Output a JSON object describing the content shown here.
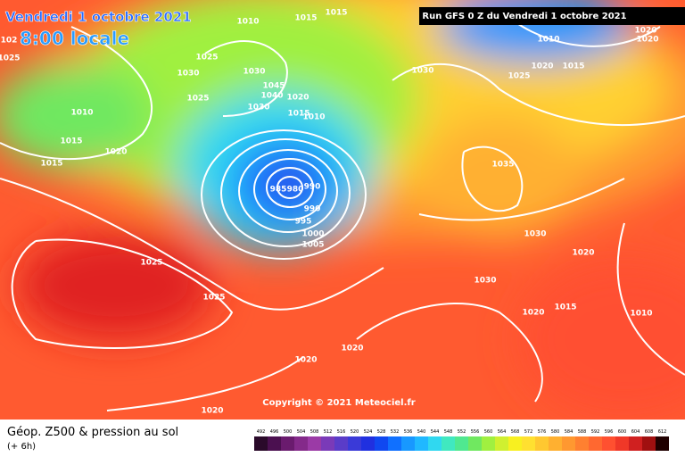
{
  "header": {
    "title": "Vendredi 1 octobre 2021",
    "time": "8:00 locale",
    "run": "Run GFS 0 Z du Vendredi 1 octobre 2021",
    "copyright": "Copyright © 2021 Meteociel.fr"
  },
  "footer": {
    "title": "Géop. Z500 & pression au sol",
    "subtitle": "(+ 6h)"
  },
  "legend": {
    "ticks": [
      492,
      496,
      500,
      504,
      508,
      512,
      516,
      520,
      524,
      528,
      532,
      536,
      540,
      544,
      548,
      552,
      556,
      560,
      564,
      568,
      572,
      576,
      580,
      584,
      588,
      592,
      596,
      600,
      604,
      608,
      612
    ],
    "colors": [
      "#2a0a2a",
      "#4b1050",
      "#6a1b6e",
      "#842a8a",
      "#9b3aa6",
      "#7a3ab8",
      "#5a3cc8",
      "#3a3ad8",
      "#2030e0",
      "#1048f0",
      "#1070ff",
      "#1898ff",
      "#20b8ff",
      "#30d8f0",
      "#40e8c0",
      "#50e890",
      "#70e860",
      "#a0f040",
      "#d0f030",
      "#f8f020",
      "#ffe030",
      "#ffc830",
      "#ffb030",
      "#ff9830",
      "#ff8030",
      "#ff6830",
      "#ff5030",
      "#f03828",
      "#d02020",
      "#a01010",
      "#200000"
    ]
  },
  "isobar_labels": [
    "1025",
    "1025",
    "1020",
    "1020",
    "1020",
    "1015",
    "1015",
    "1020",
    "1010",
    "1025",
    "1030",
    "1025",
    "1030",
    "1045",
    "1040",
    "1030",
    "1020",
    "1015",
    "1010",
    "1015",
    "1015",
    "1010",
    "1030",
    "1025",
    "1020",
    "1015",
    "1010",
    "1020",
    "1020",
    "1035",
    "1030",
    "1020",
    "1030",
    "1020",
    "1015",
    "1010",
    "990",
    "990",
    "995",
    "1000",
    "1005",
    "985",
    "980",
    "1025",
    "102"
  ]
}
